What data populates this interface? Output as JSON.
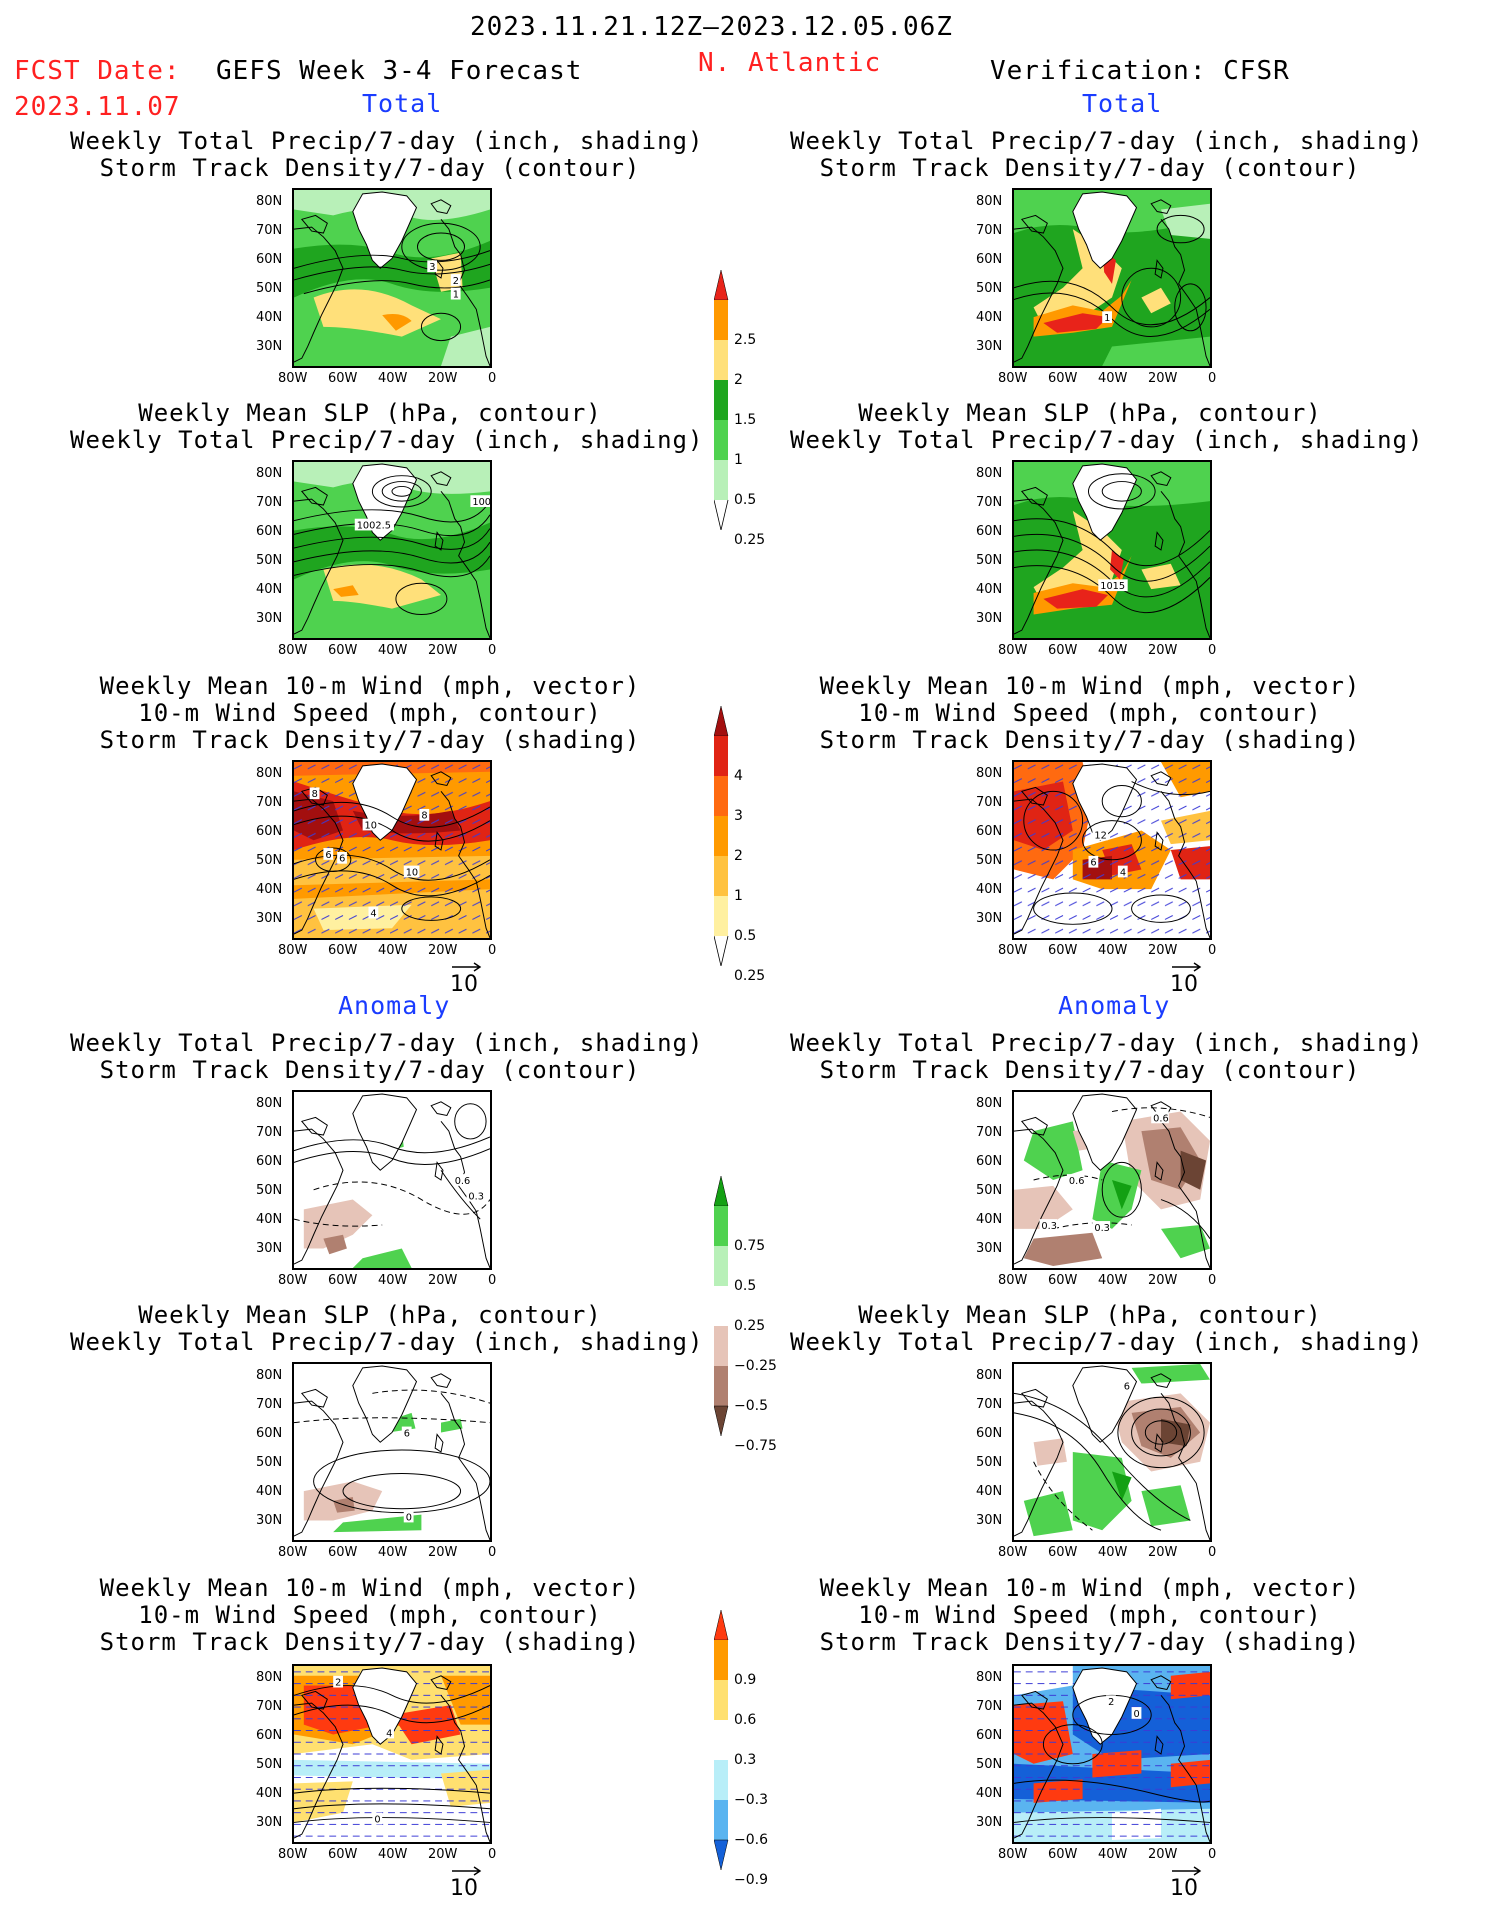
{
  "header": {
    "date_range": "2023.11.21.12Z–2023.12.05.06Z",
    "fcst_label": "FCST Date:",
    "fcst_date": "2023.11.07",
    "forecast_title": "GEFS Week 3-4 Forecast",
    "region": "N. Atlantic",
    "verification": "Verification: CFSR"
  },
  "sections": {
    "total": "Total",
    "anomaly": "Anomaly"
  },
  "panel_titles": {
    "precip_storm": "Weekly Total Precip/7-day (inch, shading)\nStorm Track Density/7-day (contour)",
    "slp_precip": "Weekly Mean SLP (hPa, contour)\nWeekly Total Precip/7-day (inch, shading)",
    "wind_storm": "Weekly Mean 10-m Wind (mph, vector)\n10-m Wind Speed (mph, contour)\nStorm Track Density/7-day (shading)"
  },
  "axes": {
    "lat_ticks": [
      "80N",
      "70N",
      "60N",
      "50N",
      "40N",
      "30N"
    ],
    "lon_ticks": [
      "80W",
      "60W",
      "40W",
      "20W",
      "0"
    ]
  },
  "vector_reference": "10",
  "colorbars": {
    "precip_total": {
      "labels": [
        "2.5",
        "2",
        "1.5",
        "1",
        "0.5",
        "0.25"
      ],
      "colors": [
        "#e8231a",
        "#ff9900",
        "#ffe07a",
        "#1fa51f",
        "#4fd24f",
        "#b8f0b8"
      ]
    },
    "storm_total": {
      "labels": [
        "4",
        "3",
        "2",
        "1",
        "0.5",
        "0.25"
      ],
      "colors": [
        "#a30f0f",
        "#e02414",
        "#ff6a10",
        "#ff9a00",
        "#ffc240",
        "#fff0a0"
      ]
    },
    "precip_anom": {
      "labels": [
        "0.75",
        "0.5",
        "0.25",
        "−0.25",
        "−0.5",
        "−0.75"
      ],
      "colors_top": [
        "#13a013",
        "#4fd24f",
        "#b8f0b8"
      ],
      "colors_bottom": [
        "#e6c4b8",
        "#b08070",
        "#6b4434"
      ]
    },
    "storm_anom": {
      "labels": [
        "0.9",
        "0.6",
        "0.3",
        "−0.3",
        "−0.6",
        "−0.9"
      ],
      "colors_top": [
        "#ff3a10",
        "#ff9a00",
        "#ffe070"
      ],
      "colors_bottom": [
        "#b8eef8",
        "#5ab4f0",
        "#1460d8"
      ]
    }
  },
  "contour_labels": {
    "fc_storm_total": [
      "3",
      "2",
      "1"
    ],
    "vf_storm_total": [
      "1"
    ],
    "fc_slp_total": [
      "1002.5",
      "100"
    ],
    "vf_slp_total": [
      "1015"
    ],
    "fc_wind_total": [
      "8",
      "10",
      "8",
      "6",
      "6",
      "10",
      "4"
    ],
    "vf_wind_total": [
      "12",
      "6",
      "4"
    ],
    "fc_storm_anom": [
      "0.6",
      "0.3"
    ],
    "vf_storm_anom": [
      "0.6",
      "0.6",
      "0.3",
      "0.3"
    ],
    "fc_slp_anom": [
      "6",
      "0"
    ],
    "vf_slp_anom": [
      "6"
    ],
    "fc_wind_anom": [
      "2",
      "4",
      "0"
    ],
    "vf_wind_anom": [
      "2",
      "0"
    ]
  }
}
